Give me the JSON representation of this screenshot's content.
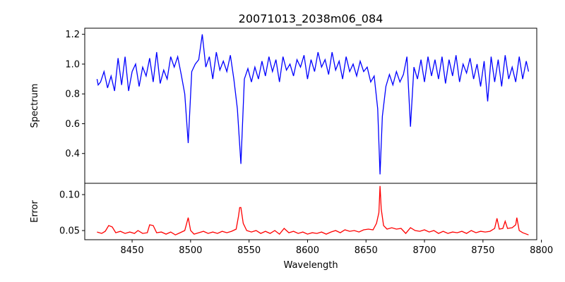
{
  "chart_data": [
    {
      "type": "line",
      "title": "20071013_2038m06_084",
      "xlabel": "",
      "ylabel": "Spectrum",
      "xlim": [
        8409.5,
        8796
      ],
      "ylim": [
        0.2,
        1.241
      ],
      "yticks": [
        0.4,
        0.6,
        0.8,
        1.0,
        1.2
      ],
      "ytick_labels": [
        "0.4",
        "0.6",
        "0.8",
        "1.0",
        "1.2"
      ],
      "grid": false,
      "color": "#0000ff",
      "points": [
        [
          8420,
          0.9
        ],
        [
          8421,
          0.86
        ],
        [
          8423,
          0.88
        ],
        [
          8426,
          0.95
        ],
        [
          8429,
          0.84
        ],
        [
          8432,
          0.92
        ],
        [
          8435,
          0.82
        ],
        [
          8438,
          1.04
        ],
        [
          8441,
          0.86
        ],
        [
          8444,
          1.05
        ],
        [
          8447,
          0.82
        ],
        [
          8450,
          0.95
        ],
        [
          8453,
          1.0
        ],
        [
          8456,
          0.85
        ],
        [
          8459,
          0.98
        ],
        [
          8462,
          0.92
        ],
        [
          8465,
          1.04
        ],
        [
          8468,
          0.88
        ],
        [
          8471,
          1.08
        ],
        [
          8474,
          0.87
        ],
        [
          8477,
          0.96
        ],
        [
          8480,
          0.9
        ],
        [
          8483,
          1.05
        ],
        [
          8486,
          0.98
        ],
        [
          8489,
          1.05
        ],
        [
          8492,
          0.93
        ],
        [
          8495,
          0.8
        ],
        [
          8498,
          0.47
        ],
        [
          8501,
          0.95
        ],
        [
          8504,
          1.0
        ],
        [
          8507,
          1.03
        ],
        [
          8510,
          1.2
        ],
        [
          8513,
          0.98
        ],
        [
          8516,
          1.05
        ],
        [
          8519,
          0.9
        ],
        [
          8522,
          1.08
        ],
        [
          8525,
          0.96
        ],
        [
          8528,
          1.02
        ],
        [
          8531,
          0.95
        ],
        [
          8534,
          1.06
        ],
        [
          8537,
          0.9
        ],
        [
          8540,
          0.7
        ],
        [
          8543,
          0.33
        ],
        [
          8546,
          0.9
        ],
        [
          8549,
          0.97
        ],
        [
          8552,
          0.88
        ],
        [
          8555,
          0.98
        ],
        [
          8558,
          0.9
        ],
        [
          8561,
          1.02
        ],
        [
          8564,
          0.92
        ],
        [
          8567,
          1.05
        ],
        [
          8570,
          0.95
        ],
        [
          8573,
          1.03
        ],
        [
          8576,
          0.88
        ],
        [
          8579,
          1.05
        ],
        [
          8582,
          0.96
        ],
        [
          8585,
          1.0
        ],
        [
          8588,
          0.92
        ],
        [
          8591,
          1.03
        ],
        [
          8594,
          0.98
        ],
        [
          8597,
          1.06
        ],
        [
          8600,
          0.9
        ],
        [
          8603,
          1.03
        ],
        [
          8606,
          0.95
        ],
        [
          8609,
          1.08
        ],
        [
          8612,
          0.98
        ],
        [
          8615,
          1.03
        ],
        [
          8618,
          0.93
        ],
        [
          8621,
          1.08
        ],
        [
          8624,
          0.96
        ],
        [
          8627,
          1.02
        ],
        [
          8630,
          0.9
        ],
        [
          8633,
          1.05
        ],
        [
          8636,
          0.95
        ],
        [
          8639,
          1.0
        ],
        [
          8642,
          0.92
        ],
        [
          8645,
          1.02
        ],
        [
          8648,
          0.95
        ],
        [
          8651,
          0.98
        ],
        [
          8654,
          0.88
        ],
        [
          8657,
          0.92
        ],
        [
          8660,
          0.7
        ],
        [
          8662,
          0.26
        ],
        [
          8664,
          0.65
        ],
        [
          8667,
          0.85
        ],
        [
          8670,
          0.93
        ],
        [
          8673,
          0.86
        ],
        [
          8676,
          0.95
        ],
        [
          8679,
          0.88
        ],
        [
          8682,
          0.93
        ],
        [
          8685,
          1.05
        ],
        [
          8688,
          0.58
        ],
        [
          8691,
          0.98
        ],
        [
          8694,
          0.9
        ],
        [
          8697,
          1.03
        ],
        [
          8700,
          0.88
        ],
        [
          8703,
          1.05
        ],
        [
          8706,
          0.92
        ],
        [
          8709,
          1.03
        ],
        [
          8712,
          0.9
        ],
        [
          8715,
          1.05
        ],
        [
          8718,
          0.87
        ],
        [
          8721,
          1.03
        ],
        [
          8724,
          0.92
        ],
        [
          8727,
          1.06
        ],
        [
          8730,
          0.88
        ],
        [
          8733,
          1.0
        ],
        [
          8736,
          0.94
        ],
        [
          8739,
          1.04
        ],
        [
          8742,
          0.9
        ],
        [
          8745,
          1.0
        ],
        [
          8748,
          0.85
        ],
        [
          8751,
          1.02
        ],
        [
          8754,
          0.75
        ],
        [
          8757,
          1.05
        ],
        [
          8760,
          0.88
        ],
        [
          8763,
          1.03
        ],
        [
          8766,
          0.85
        ],
        [
          8769,
          1.06
        ],
        [
          8772,
          0.9
        ],
        [
          8775,
          0.98
        ],
        [
          8778,
          0.88
        ],
        [
          8781,
          1.05
        ],
        [
          8784,
          0.9
        ],
        [
          8787,
          1.02
        ],
        [
          8789,
          0.95
        ]
      ]
    },
    {
      "type": "line",
      "title": "",
      "xlabel": "Wavelength",
      "ylabel": "Error",
      "xlim": [
        8409.5,
        8796
      ],
      "ylim": [
        0.0373,
        0.1157
      ],
      "xticks": [
        8450,
        8500,
        8550,
        8600,
        8650,
        8700,
        8750,
        8800
      ],
      "xtick_labels": [
        "8450",
        "8500",
        "8550",
        "8600",
        "8650",
        "8700",
        "8750",
        "8800"
      ],
      "yticks": [
        0.05,
        0.1
      ],
      "ytick_labels": [
        "0.05",
        "0.10"
      ],
      "grid": false,
      "color": "#ff0000",
      "points": [
        [
          8420,
          0.048
        ],
        [
          8424,
          0.046
        ],
        [
          8427,
          0.049
        ],
        [
          8430,
          0.057
        ],
        [
          8433,
          0.055
        ],
        [
          8436,
          0.047
        ],
        [
          8440,
          0.049
        ],
        [
          8444,
          0.046
        ],
        [
          8448,
          0.048
        ],
        [
          8452,
          0.046
        ],
        [
          8455,
          0.05
        ],
        [
          8459,
          0.046
        ],
        [
          8463,
          0.047
        ],
        [
          8465,
          0.058
        ],
        [
          8468,
          0.057
        ],
        [
          8471,
          0.047
        ],
        [
          8475,
          0.048
        ],
        [
          8479,
          0.045
        ],
        [
          8483,
          0.048
        ],
        [
          8487,
          0.044
        ],
        [
          8491,
          0.047
        ],
        [
          8495,
          0.05
        ],
        [
          8498,
          0.068
        ],
        [
          8500,
          0.05
        ],
        [
          8503,
          0.045
        ],
        [
          8507,
          0.047
        ],
        [
          8511,
          0.049
        ],
        [
          8515,
          0.046
        ],
        [
          8519,
          0.048
        ],
        [
          8523,
          0.046
        ],
        [
          8527,
          0.049
        ],
        [
          8531,
          0.047
        ],
        [
          8535,
          0.049
        ],
        [
          8539,
          0.052
        ],
        [
          8541,
          0.07
        ],
        [
          8542,
          0.082
        ],
        [
          8543,
          0.082
        ],
        [
          8545,
          0.06
        ],
        [
          8548,
          0.05
        ],
        [
          8552,
          0.048
        ],
        [
          8556,
          0.05
        ],
        [
          8560,
          0.046
        ],
        [
          8564,
          0.049
        ],
        [
          8568,
          0.046
        ],
        [
          8572,
          0.05
        ],
        [
          8576,
          0.045
        ],
        [
          8580,
          0.053
        ],
        [
          8584,
          0.047
        ],
        [
          8588,
          0.049
        ],
        [
          8592,
          0.046
        ],
        [
          8596,
          0.048
        ],
        [
          8600,
          0.045
        ],
        [
          8604,
          0.047
        ],
        [
          8608,
          0.046
        ],
        [
          8612,
          0.048
        ],
        [
          8616,
          0.045
        ],
        [
          8620,
          0.048
        ],
        [
          8624,
          0.05
        ],
        [
          8628,
          0.047
        ],
        [
          8632,
          0.051
        ],
        [
          8636,
          0.049
        ],
        [
          8640,
          0.05
        ],
        [
          8644,
          0.048
        ],
        [
          8648,
          0.051
        ],
        [
          8652,
          0.052
        ],
        [
          8656,
          0.051
        ],
        [
          8659,
          0.06
        ],
        [
          8661,
          0.075
        ],
        [
          8662,
          0.112
        ],
        [
          8663,
          0.08
        ],
        [
          8665,
          0.057
        ],
        [
          8668,
          0.052
        ],
        [
          8672,
          0.054
        ],
        [
          8676,
          0.052
        ],
        [
          8680,
          0.053
        ],
        [
          8684,
          0.046
        ],
        [
          8688,
          0.054
        ],
        [
          8692,
          0.05
        ],
        [
          8696,
          0.049
        ],
        [
          8700,
          0.051
        ],
        [
          8704,
          0.048
        ],
        [
          8708,
          0.05
        ],
        [
          8712,
          0.046
        ],
        [
          8716,
          0.049
        ],
        [
          8720,
          0.046
        ],
        [
          8724,
          0.048
        ],
        [
          8728,
          0.047
        ],
        [
          8732,
          0.049
        ],
        [
          8736,
          0.046
        ],
        [
          8740,
          0.05
        ],
        [
          8744,
          0.047
        ],
        [
          8748,
          0.049
        ],
        [
          8752,
          0.048
        ],
        [
          8756,
          0.049
        ],
        [
          8760,
          0.053
        ],
        [
          8762,
          0.067
        ],
        [
          8764,
          0.052
        ],
        [
          8767,
          0.053
        ],
        [
          8769,
          0.063
        ],
        [
          8771,
          0.053
        ],
        [
          8775,
          0.054
        ],
        [
          8778,
          0.058
        ],
        [
          8779,
          0.068
        ],
        [
          8781,
          0.05
        ],
        [
          8784,
          0.047
        ],
        [
          8789,
          0.044
        ]
      ]
    }
  ]
}
